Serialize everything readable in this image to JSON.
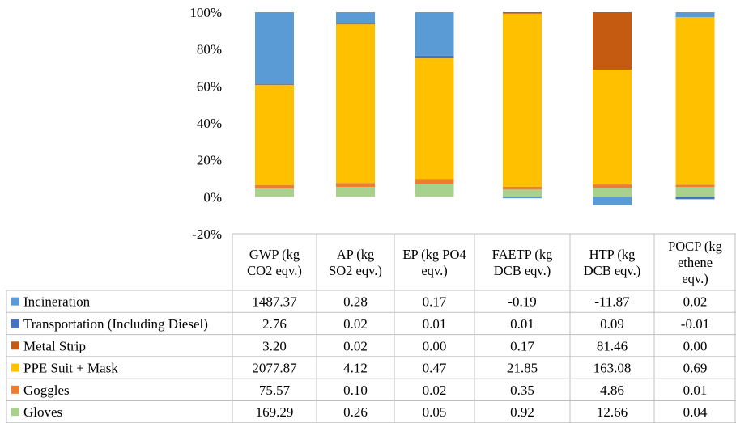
{
  "chart_data": {
    "type": "bar",
    "stacked": "percent",
    "categories": [
      "GWP (kg CO2 eqv.)",
      "AP (kg SO2 eqv.)",
      "EP (kg PO4 eqv.)",
      "FAETP (kg DCB eqv.)",
      "HTP (kg DCB eqv.)",
      "POCP (kg ethene eqv.)"
    ],
    "category_lines": [
      [
        "GWP (kg",
        "CO2 eqv.)"
      ],
      [
        "AP (kg",
        "SO2 eqv.)"
      ],
      [
        "EP (kg PO4",
        "eqv.)"
      ],
      [
        "FAETP (kg",
        "DCB eqv.)"
      ],
      [
        "HTP (kg",
        "DCB eqv.)"
      ],
      [
        "POCP (kg",
        "ethene",
        "eqv.)"
      ]
    ],
    "series": [
      {
        "name": "Gloves",
        "color": "#a9d18e",
        "values": [
          169.29,
          0.26,
          0.05,
          0.92,
          12.66,
          0.04
        ],
        "labels": [
          "169.29",
          "0.26",
          "0.05",
          "0.92",
          "12.66",
          "0.04"
        ]
      },
      {
        "name": "Goggles",
        "color": "#ed7d31",
        "values": [
          75.57,
          0.1,
          0.02,
          0.35,
          4.86,
          0.01
        ],
        "labels": [
          "75.57",
          "0.10",
          "0.02",
          "0.35",
          "4.86",
          "0.01"
        ]
      },
      {
        "name": "PPE Suit + Mask",
        "color": "#ffc000",
        "values": [
          2077.87,
          4.12,
          0.47,
          21.85,
          163.08,
          0.69
        ],
        "labels": [
          "2077.87",
          "4.12",
          "0.47",
          "21.85",
          "163.08",
          "0.69"
        ]
      },
      {
        "name": "Metal Strip",
        "color": "#c55a11",
        "values": [
          3.2,
          0.02,
          0.0,
          0.17,
          81.46,
          0.0
        ],
        "labels": [
          "3.20",
          "0.02",
          "0.00",
          "0.17",
          "81.46",
          "0.00"
        ]
      },
      {
        "name": "Transportation (Including Diesel)",
        "color": "#4472c4",
        "values": [
          2.76,
          0.02,
          0.01,
          0.01,
          0.09,
          -0.01
        ],
        "labels": [
          "2.76",
          "0.02",
          "0.01",
          "0.01",
          "0.09",
          "-0.01"
        ]
      },
      {
        "name": "Incineration",
        "color": "#5b9bd5",
        "values": [
          1487.37,
          0.28,
          0.17,
          -0.19,
          -11.87,
          0.02
        ],
        "labels": [
          "1487.37",
          "0.28",
          "0.17",
          "-0.19",
          "-11.87",
          "0.02"
        ]
      }
    ],
    "table_row_order": [
      "Incineration",
      "Transportation (Including Diesel)",
      "Metal Strip",
      "PPE Suit + Mask",
      "Goggles",
      "Gloves"
    ],
    "ylim": [
      -0.2,
      1.0
    ],
    "yticks": [
      -0.2,
      0,
      0.2,
      0.4,
      0.6,
      0.8,
      1.0
    ],
    "ytick_labels": [
      "-20%",
      "0%",
      "20%",
      "40%",
      "60%",
      "80%",
      "100%"
    ],
    "legend": "data-table-below",
    "grid": false
  }
}
